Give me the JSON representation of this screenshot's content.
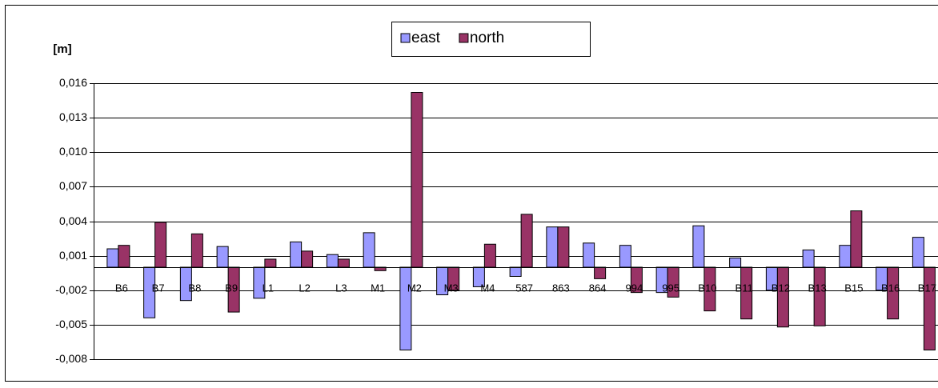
{
  "chart_data": {
    "type": "bar",
    "ylabel": "[m]",
    "categories": [
      "B6",
      "B7",
      "B8",
      "B9",
      "L1",
      "L2",
      "L3",
      "M1",
      "M2",
      "M3",
      "M4",
      "587",
      "863",
      "864",
      "994",
      "995",
      "B10",
      "B11",
      "B12",
      "B13",
      "B15",
      "B16",
      "B17"
    ],
    "series": [
      {
        "name": "east",
        "color": "#9999ff",
        "values": [
          0.0016,
          -0.0044,
          -0.0029,
          0.0018,
          -0.0027,
          0.0022,
          0.0011,
          0.003,
          -0.0072,
          -0.0024,
          -0.0017,
          -0.0008,
          0.0035,
          0.0021,
          0.0019,
          -0.0022,
          0.0036,
          0.0008,
          -0.002,
          0.0015,
          0.0019,
          -0.002,
          0.0026
        ]
      },
      {
        "name": "north",
        "color": "#993366",
        "values": [
          0.0019,
          0.0039,
          0.0029,
          -0.0039,
          0.0007,
          0.0014,
          0.0007,
          -0.0003,
          0.0152,
          -0.002,
          0.002,
          0.0046,
          0.0035,
          -0.001,
          -0.0022,
          -0.0026,
          -0.0038,
          -0.0045,
          -0.0052,
          -0.0051,
          0.0049,
          -0.0045,
          -0.0072
        ]
      }
    ],
    "ylim": [
      -0.008,
      0.016
    ],
    "yticks": [
      {
        "value": 0.016,
        "label": "0,016"
      },
      {
        "value": 0.013,
        "label": "0,013"
      },
      {
        "value": 0.01,
        "label": "0,010"
      },
      {
        "value": 0.007,
        "label": "0,007"
      },
      {
        "value": 0.004,
        "label": "0,004"
      },
      {
        "value": 0.001,
        "label": "0,001"
      },
      {
        "value": -0.002,
        "label": "-0,002"
      },
      {
        "value": -0.005,
        "label": "-0,005"
      },
      {
        "value": -0.008,
        "label": "-0,008"
      }
    ],
    "grid": true,
    "legend": "top"
  }
}
